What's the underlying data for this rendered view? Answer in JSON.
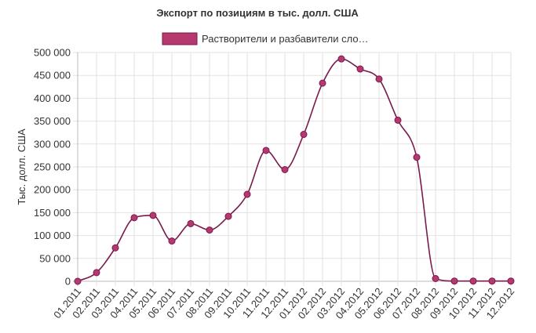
{
  "chart_data": {
    "type": "line",
    "title": "Экспорт по позициям в тыс. долл. США",
    "ylabel": "Тыс. долл. США",
    "xlabel": "",
    "ylim": [
      0,
      500000
    ],
    "y_ticks": [
      "0",
      "50 000",
      "100 000",
      "150 000",
      "200 000",
      "250 000",
      "300 000",
      "350 000",
      "400 000",
      "450 000",
      "500 000"
    ],
    "grid": true,
    "legend_position": "top",
    "categories": [
      "01.2011",
      "02.2011",
      "03.2011",
      "04.2011",
      "05.2011",
      "06.2011",
      "07.2011",
      "08.2011",
      "09.2011",
      "10.2011",
      "11.2011",
      "12.2011",
      "01.2012",
      "02.2012",
      "03.2012",
      "04.2012",
      "05.2012",
      "06.2012",
      "07.2012",
      "08.2012",
      "09.2012",
      "10.2012",
      "11.2012",
      "12.2012"
    ],
    "series": [
      {
        "name": "Растворители и разбавители сло…",
        "color": "#b5386f",
        "line_color": "#7a1a4e",
        "values": [
          0,
          19000,
          73000,
          139000,
          144000,
          88000,
          126000,
          112000,
          142000,
          190000,
          286000,
          244000,
          321000,
          433000,
          486000,
          464000,
          442000,
          352000,
          271000,
          6000,
          500,
          500,
          500,
          500
        ]
      }
    ]
  }
}
